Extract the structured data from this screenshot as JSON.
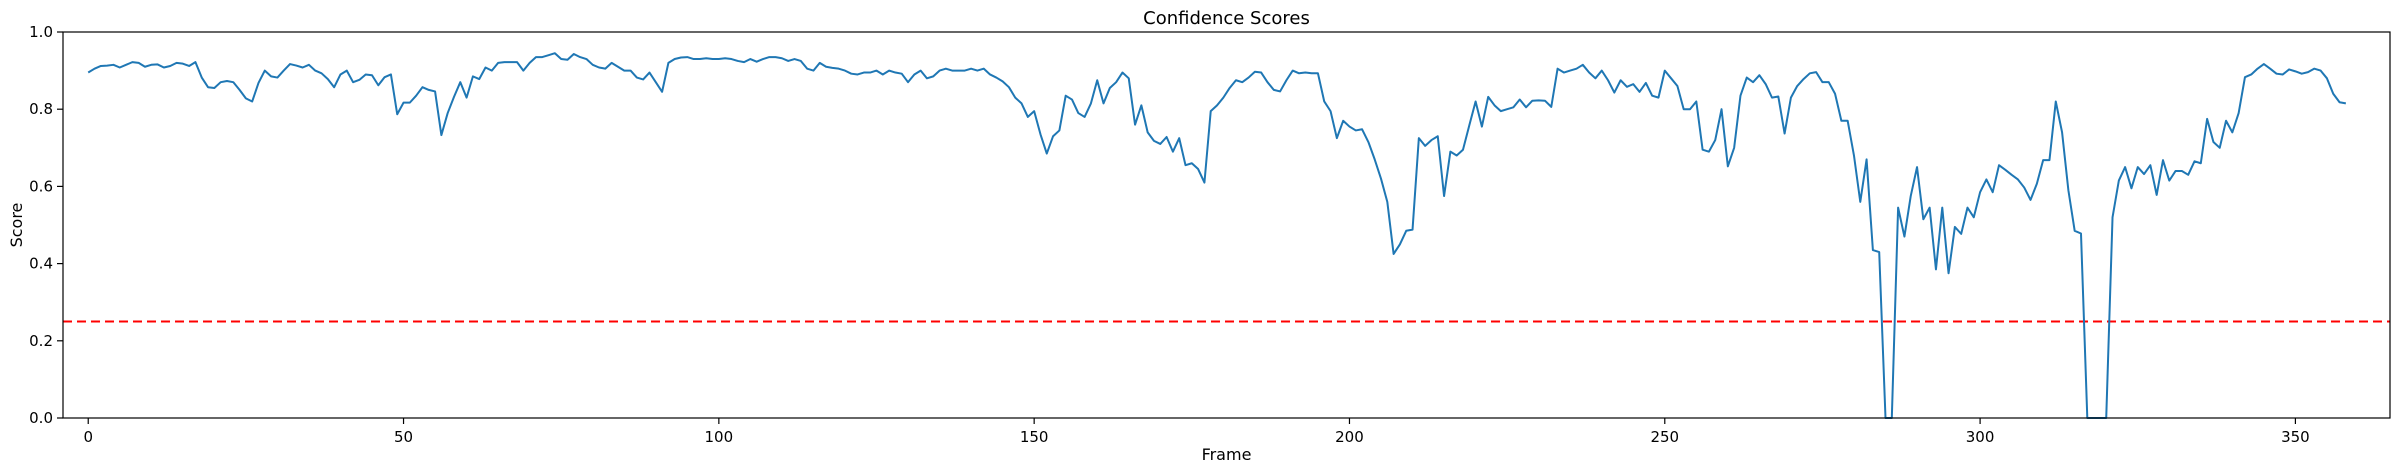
{
  "chart_data": {
    "type": "line",
    "title": "Confidence Scores",
    "xlabel": "Frame",
    "ylabel": "Score",
    "xlim": [
      -4,
      365
    ],
    "ylim": [
      0,
      1
    ],
    "x_ticks": [
      0,
      50,
      100,
      150,
      200,
      250,
      300,
      350
    ],
    "y_ticks": [
      "0.0",
      "0.2",
      "0.4",
      "0.6",
      "0.8",
      "1.0"
    ],
    "grid": false,
    "series": [
      {
        "color": "#1f77b4",
        "x_start": 0,
        "x_step": 1,
        "values": [
          0.895,
          0.905,
          0.912,
          0.913,
          0.915,
          0.908,
          0.915,
          0.922,
          0.92,
          0.91,
          0.915,
          0.916,
          0.908,
          0.912,
          0.92,
          0.918,
          0.912,
          0.922,
          0.882,
          0.857,
          0.855,
          0.87,
          0.873,
          0.87,
          0.85,
          0.828,
          0.82,
          0.868,
          0.9,
          0.885,
          0.882,
          0.9,
          0.917,
          0.913,
          0.908,
          0.915,
          0.9,
          0.893,
          0.878,
          0.857,
          0.89,
          0.9,
          0.87,
          0.876,
          0.89,
          0.888,
          0.862,
          0.883,
          0.89,
          0.787,
          0.817,
          0.817,
          0.835,
          0.857,
          0.85,
          0.846,
          0.733,
          0.79,
          0.832,
          0.87,
          0.83,
          0.885,
          0.878,
          0.908,
          0.9,
          0.92,
          0.922,
          0.922,
          0.922,
          0.9,
          0.92,
          0.935,
          0.935,
          0.94,
          0.945,
          0.93,
          0.928,
          0.943,
          0.935,
          0.93,
          0.915,
          0.908,
          0.905,
          0.92,
          0.91,
          0.9,
          0.9,
          0.882,
          0.877,
          0.895,
          0.87,
          0.845,
          0.92,
          0.93,
          0.934,
          0.935,
          0.93,
          0.93,
          0.932,
          0.93,
          0.93,
          0.932,
          0.93,
          0.925,
          0.922,
          0.93,
          0.923,
          0.93,
          0.935,
          0.935,
          0.932,
          0.925,
          0.93,
          0.925,
          0.905,
          0.9,
          0.92,
          0.91,
          0.907,
          0.905,
          0.9,
          0.892,
          0.89,
          0.895,
          0.895,
          0.9,
          0.89,
          0.9,
          0.895,
          0.892,
          0.87,
          0.89,
          0.9,
          0.88,
          0.885,
          0.9,
          0.905,
          0.9,
          0.9,
          0.9,
          0.905,
          0.9,
          0.905,
          0.89,
          0.882,
          0.872,
          0.857,
          0.83,
          0.815,
          0.78,
          0.795,
          0.735,
          0.685,
          0.73,
          0.745,
          0.835,
          0.825,
          0.79,
          0.78,
          0.815,
          0.875,
          0.815,
          0.855,
          0.87,
          0.895,
          0.88,
          0.76,
          0.81,
          0.74,
          0.718,
          0.71,
          0.728,
          0.69,
          0.725,
          0.655,
          0.66,
          0.645,
          0.61,
          0.795,
          0.81,
          0.83,
          0.855,
          0.875,
          0.87,
          0.882,
          0.897,
          0.895,
          0.87,
          0.85,
          0.846,
          0.875,
          0.9,
          0.893,
          0.895,
          0.893,
          0.893,
          0.82,
          0.795,
          0.725,
          0.77,
          0.755,
          0.745,
          0.748,
          0.715,
          0.67,
          0.62,
          0.56,
          0.425,
          0.45,
          0.485,
          0.488,
          0.725,
          0.705,
          0.72,
          0.73,
          0.575,
          0.69,
          0.68,
          0.695,
          0.758,
          0.82,
          0.755,
          0.832,
          0.81,
          0.795,
          0.8,
          0.805,
          0.825,
          0.805,
          0.822,
          0.823,
          0.822,
          0.806,
          0.905,
          0.895,
          0.9,
          0.905,
          0.915,
          0.895,
          0.88,
          0.9,
          0.875,
          0.843,
          0.875,
          0.858,
          0.865,
          0.845,
          0.868,
          0.835,
          0.83,
          0.9,
          0.88,
          0.86,
          0.8,
          0.8,
          0.82,
          0.695,
          0.69,
          0.72,
          0.8,
          0.652,
          0.7,
          0.835,
          0.882,
          0.87,
          0.888,
          0.865,
          0.83,
          0.833,
          0.737,
          0.83,
          0.86,
          0.878,
          0.893,
          0.896,
          0.87,
          0.87,
          0.84,
          0.77,
          0.77,
          0.68,
          0.56,
          0.67,
          0.435,
          0.43,
          0.0,
          0.0,
          0.545,
          0.47,
          0.575,
          0.65,
          0.515,
          0.545,
          0.385,
          0.545,
          0.375,
          0.495,
          0.477,
          0.545,
          0.52,
          0.585,
          0.618,
          0.585,
          0.655,
          0.643,
          0.63,
          0.618,
          0.597,
          0.565,
          0.607,
          0.668,
          0.668,
          0.82,
          0.74,
          0.59,
          0.485,
          0.478,
          0.0,
          0.0,
          0.0,
          0.0,
          0.52,
          0.615,
          0.65,
          0.595,
          0.65,
          0.632,
          0.655,
          0.578,
          0.668,
          0.615,
          0.64,
          0.64,
          0.63,
          0.665,
          0.66,
          0.775,
          0.715,
          0.7,
          0.77,
          0.74,
          0.79,
          0.883,
          0.89,
          0.905,
          0.917,
          0.905,
          0.892,
          0.89,
          0.903,
          0.898,
          0.892,
          0.896,
          0.905,
          0.9,
          0.88,
          0.84,
          0.818,
          0.815
        ]
      }
    ],
    "threshold": {
      "y": 0.25,
      "color": "#ff0000",
      "style": "dashed"
    }
  }
}
